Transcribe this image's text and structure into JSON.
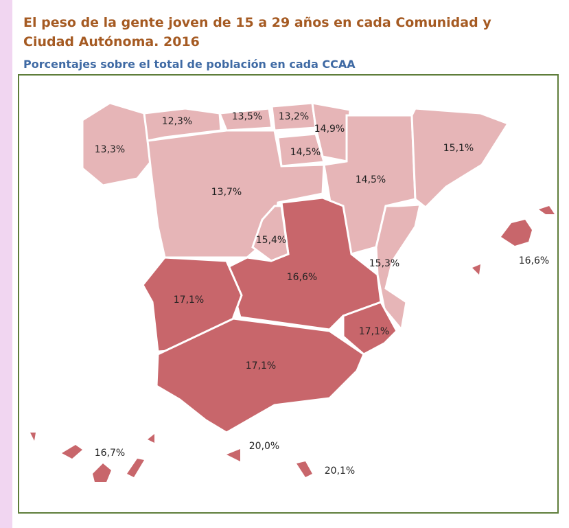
{
  "header": {
    "title_line1": "El peso de la gente joven de 15 a 29 años en cada Comunidad y",
    "title_line2": "Ciudad Autónoma. 2016",
    "subtitle": "Porcentajes sobre el total de población en cada CCAA"
  },
  "regions": [
    {
      "label": "13,3%"
    },
    {
      "label": "12,3%"
    },
    {
      "label": "13,5%"
    },
    {
      "label": "13,2%"
    },
    {
      "label": "14,9%"
    },
    {
      "label": "14,5%"
    },
    {
      "label": "13,7%"
    },
    {
      "label": "14,5%"
    },
    {
      "label": "15,1%"
    },
    {
      "label": "15,4%"
    },
    {
      "label": "16,6%"
    },
    {
      "label": "15,3%"
    },
    {
      "label": "17,1%"
    },
    {
      "label": "17,1%"
    },
    {
      "label": "17,1%"
    },
    {
      "label": "16,6%"
    },
    {
      "label": "16,7%"
    },
    {
      "label": "20,0%"
    },
    {
      "label": "20,1%"
    }
  ]
}
